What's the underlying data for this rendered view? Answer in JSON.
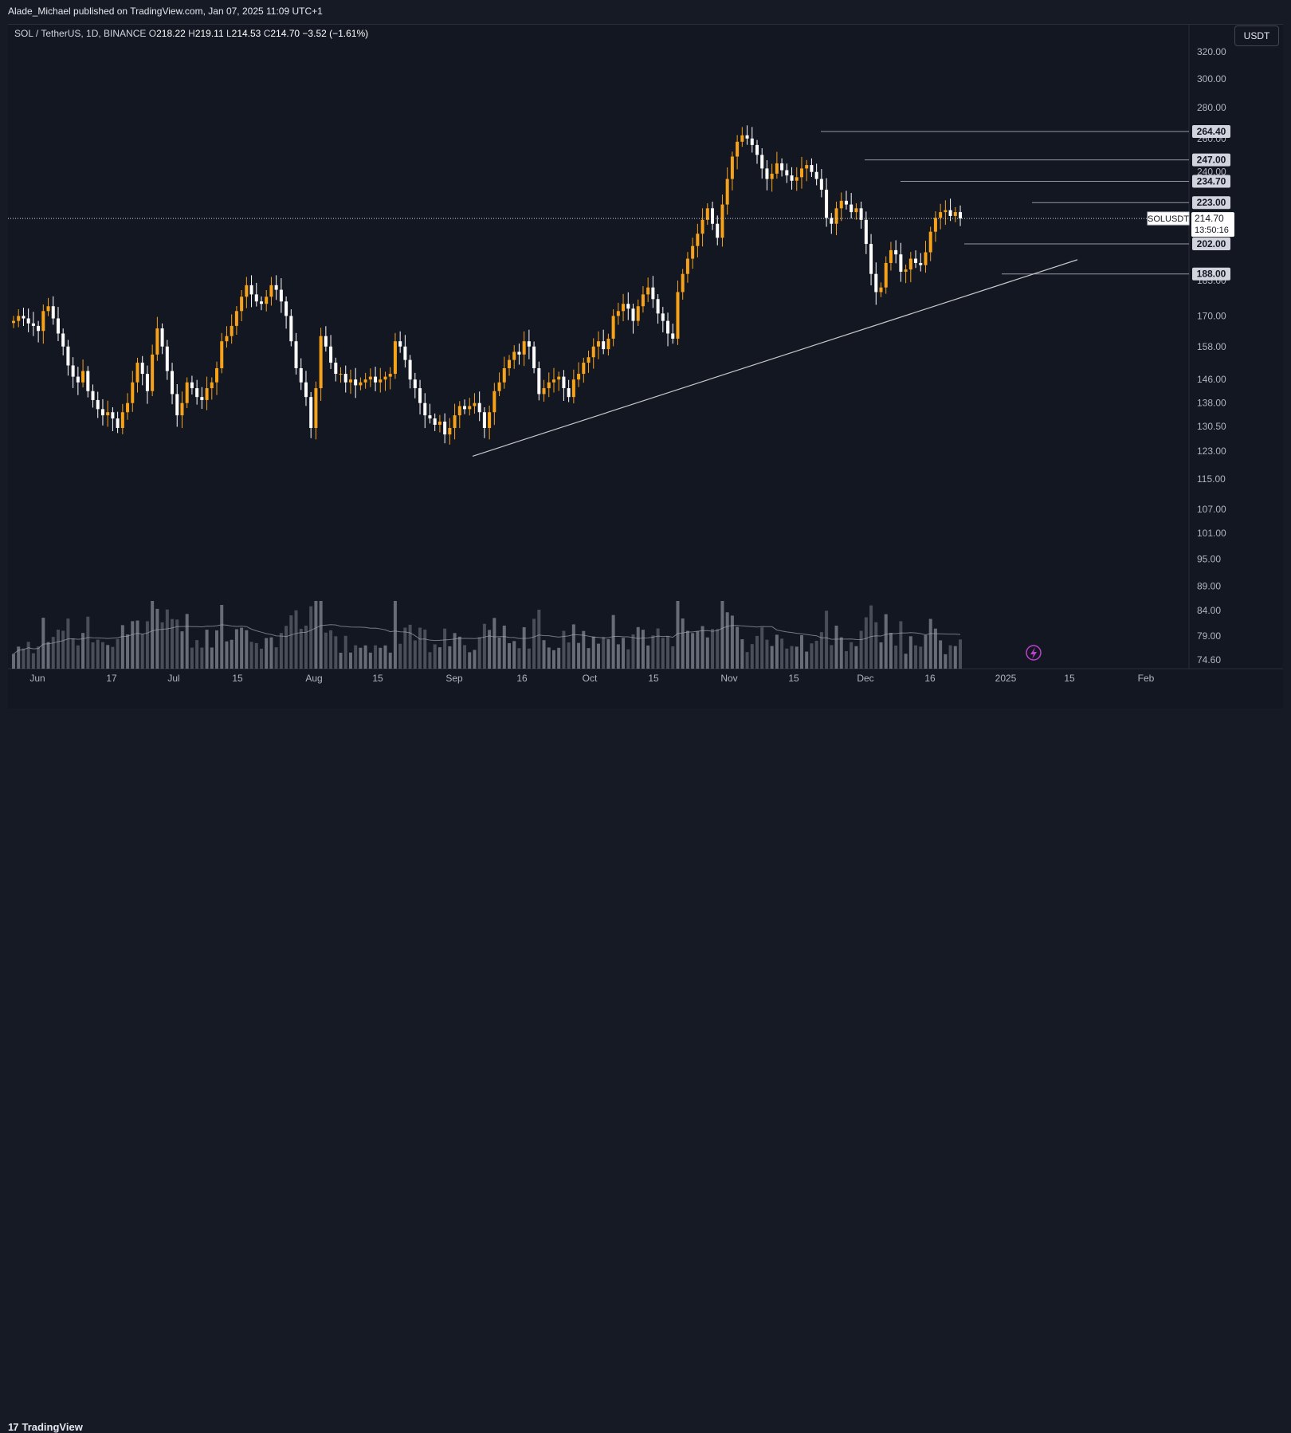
{
  "header": {
    "published": "Alade_Michael published on TradingView.com, Jan 07, 2025 11:09 UTC+1"
  },
  "legend": {
    "symbol": "SOL / TetherUS, 1D, BINANCE",
    "o_label": "O",
    "o": "218.22",
    "h_label": "H",
    "h": "219.11",
    "l_label": "L",
    "l": "214.53",
    "c_label": "C",
    "c": "214.70",
    "change": "−3.52 (−1.61%)"
  },
  "currency_button": "USDT",
  "footer": {
    "brand": "TradingView",
    "logo_text": "17"
  },
  "colors": {
    "background": "#131722",
    "up_candle": "#f7a21b",
    "down_candle": "#ffffff",
    "volume_bar": "#787b86",
    "axis_text": "#b2b5be",
    "level_line": "#9598a1",
    "trendline": "#c8c8c8"
  },
  "chart_data": {
    "type": "candlestick",
    "symbol": "SOLUSDT",
    "timeframe": "1D",
    "y_scale": "log",
    "ylim": [
      74.6,
      320
    ],
    "y_ticks": [
      "320.00",
      "300.00",
      "280.00",
      "260.00",
      "240.00",
      "223.00",
      "185.00",
      "170.00",
      "158.00",
      "146.00",
      "138.00",
      "130.50",
      "123.00",
      "115.00",
      "107.00",
      "101.00",
      "95.00",
      "89.00",
      "84.00",
      "79.00",
      "74.60"
    ],
    "x_ticks": [
      "Jun",
      "17",
      "Jul",
      "15",
      "Aug",
      "15",
      "Sep",
      "16",
      "Oct",
      "15",
      "Nov",
      "15",
      "Dec",
      "16",
      "2025",
      "15",
      "Feb"
    ],
    "horizontal_levels": [
      "264.40",
      "247.00",
      "234.70",
      "223.00",
      "202.00",
      "188.00"
    ],
    "last_price": {
      "label": "SOLUSDT",
      "price": "214.70",
      "countdown": "13:50:16"
    },
    "ohlc_closes_approx": [
      168,
      170,
      169,
      167,
      166,
      164,
      172,
      174,
      169,
      163,
      158,
      151,
      147,
      145,
      149,
      142,
      139,
      136,
      134,
      135,
      133,
      130,
      135,
      138,
      145,
      152,
      148,
      142,
      155,
      165,
      158,
      149,
      141,
      134,
      138,
      145,
      143,
      140,
      139,
      143,
      145,
      150,
      160,
      162,
      166,
      172,
      178,
      183,
      179,
      176,
      175,
      178,
      183,
      181,
      176,
      170,
      160,
      150,
      145,
      140,
      130,
      143,
      162,
      158,
      152,
      148,
      148,
      145,
      146,
      144,
      145,
      146,
      147,
      145,
      146,
      147,
      148,
      160,
      158,
      153,
      146,
      143,
      138,
      134,
      133,
      131,
      132,
      128,
      130,
      134,
      137,
      136,
      137,
      138,
      135,
      130,
      135,
      142,
      145,
      150,
      153,
      156,
      155,
      160,
      158,
      150,
      141,
      143,
      145,
      146,
      147,
      143,
      140,
      146,
      148,
      152,
      154,
      158,
      160,
      157,
      161,
      170,
      172,
      175,
      173,
      168,
      174,
      179,
      182,
      177,
      171,
      168,
      163,
      161,
      180,
      188,
      195,
      201,
      207,
      214,
      220,
      212,
      205,
      222,
      236,
      249,
      258,
      262,
      260,
      256,
      250,
      242,
      236,
      239,
      245,
      241,
      238,
      235,
      237,
      242,
      244,
      240,
      236,
      230,
      215,
      212,
      220,
      224,
      222,
      218,
      220,
      214,
      202,
      188,
      180,
      182,
      193,
      199,
      197,
      189,
      190,
      195,
      193,
      192,
      198,
      208,
      215,
      218,
      219,
      216,
      218,
      214.7
    ],
    "volume_ma": true
  }
}
